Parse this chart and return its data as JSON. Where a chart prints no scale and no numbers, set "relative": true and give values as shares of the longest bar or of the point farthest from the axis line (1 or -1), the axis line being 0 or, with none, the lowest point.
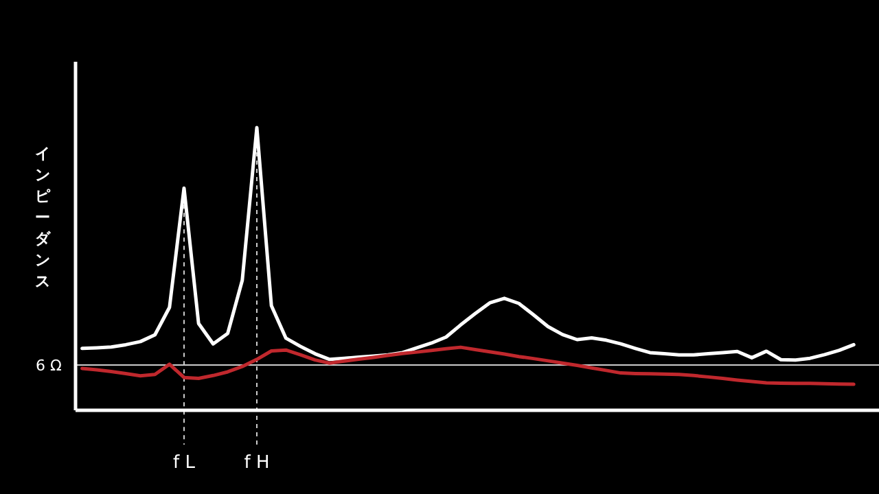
{
  "chart_data": {
    "type": "line",
    "ylabel": "インピーダンス",
    "relative": true,
    "tick_labels": "x",
    "line_style": "solid",
    "marker": "none",
    "categories": [
      null,
      null,
      null,
      null,
      null,
      null,
      null,
      "f L",
      null,
      null,
      null,
      null,
      "f H",
      null,
      null,
      null,
      null,
      null,
      null,
      null,
      null,
      null,
      null,
      null,
      null,
      null,
      null,
      null,
      null,
      null,
      null,
      null,
      null,
      null,
      null,
      null,
      null,
      null,
      null,
      null,
      null,
      null,
      null,
      null,
      null,
      null,
      null,
      null,
      null,
      null,
      null,
      null,
      null,
      null
    ],
    "series": [
      {
        "color": "#ffffff",
        "values": [
          0.219,
          0.221,
          0.224,
          0.232,
          0.243,
          0.267,
          0.364,
          0.786,
          0.307,
          0.235,
          0.272,
          0.46,
          1.0,
          0.37,
          0.255,
          0.226,
          0.2,
          0.18,
          0.184,
          0.188,
          0.192,
          0.196,
          0.204,
          0.221,
          0.238,
          0.259,
          0.302,
          0.342,
          0.38,
          0.396,
          0.378,
          0.338,
          0.296,
          0.268,
          0.25,
          0.256,
          0.248,
          0.235,
          0.219,
          0.204,
          0.2,
          0.196,
          0.196,
          0.2,
          0.204,
          0.208,
          0.186,
          0.209,
          0.179,
          0.178,
          0.184,
          0.197,
          0.212,
          0.232
        ]
      },
      {
        "color": "#c0282d",
        "values": [
          0.148,
          0.143,
          0.137,
          0.13,
          0.122,
          0.127,
          0.163,
          0.116,
          0.113,
          0.123,
          0.136,
          0.155,
          0.18,
          0.21,
          0.213,
          0.196,
          0.178,
          0.167,
          0.174,
          0.181,
          0.187,
          0.194,
          0.201,
          0.206,
          0.212,
          0.218,
          0.223,
          0.215,
          0.207,
          0.199,
          0.19,
          0.183,
          0.175,
          0.167,
          0.159,
          0.15,
          0.141,
          0.132,
          0.13,
          0.129,
          0.128,
          0.127,
          0.123,
          0.118,
          0.113,
          0.107,
          0.102,
          0.097,
          0.096,
          0.095,
          0.095,
          0.094,
          0.093,
          0.092
        ]
      }
    ],
    "ref_lines": [
      {
        "axis": "y",
        "value": 0.16,
        "label": "6 Ω",
        "color": "#cccccc",
        "line_style": "solid"
      }
    ]
  }
}
